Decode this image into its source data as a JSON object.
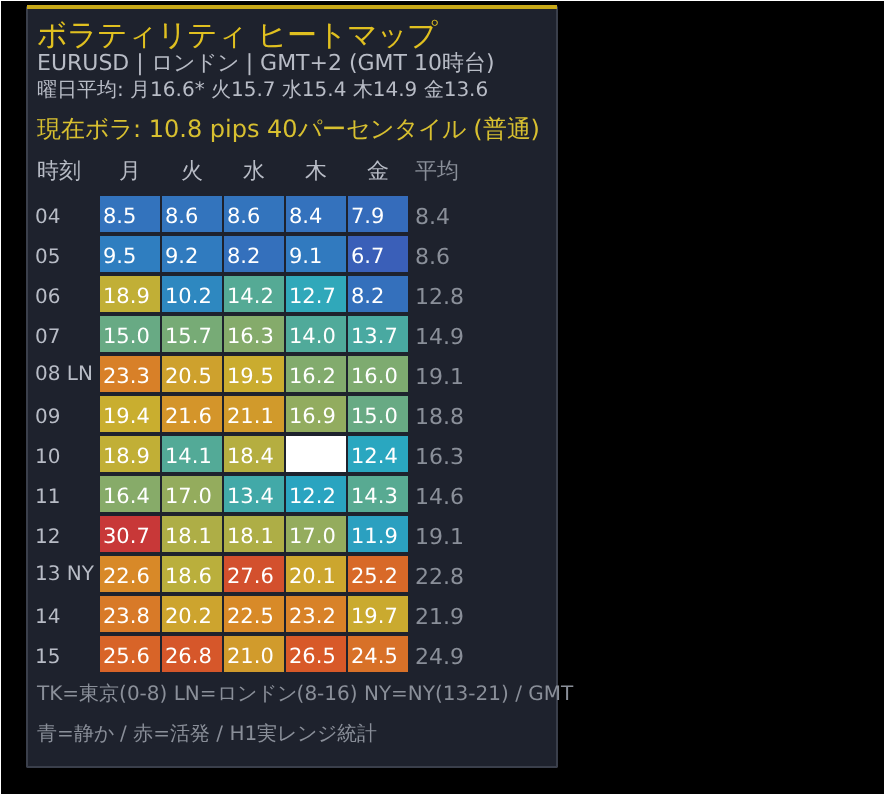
{
  "chart_data": {
    "type": "heatmap",
    "title": "ボラティリティ ヒートマップ",
    "subtitle": "EURUSD | ロンドン | GMT+2 (GMT 10時台)",
    "ylabel": "時刻",
    "y2label": "平均",
    "categories": [
      "月",
      "火",
      "水",
      "木",
      "金"
    ],
    "y_categories": [
      "04",
      "05",
      "06",
      "07",
      "08 LN",
      "09",
      "10",
      "11",
      "12",
      "13 NY",
      "14",
      "15"
    ],
    "y2_categories": [
      "8.4",
      "8.6",
      "12.8",
      "14.9",
      "19.1",
      "18.8",
      "16.3",
      "14.6",
      "19.1",
      "22.8",
      "21.9",
      "24.9"
    ],
    "cells": [
      [
        8.5,
        8.6,
        8.6,
        8.4,
        7.9
      ],
      [
        9.5,
        9.2,
        8.2,
        9.1,
        6.7
      ],
      [
        18.9,
        10.2,
        14.2,
        12.7,
        8.2
      ],
      [
        15.0,
        15.7,
        16.3,
        14.0,
        13.7
      ],
      [
        23.3,
        20.5,
        19.5,
        16.2,
        16.0
      ],
      [
        19.4,
        21.6,
        21.1,
        16.9,
        15.0
      ],
      [
        18.9,
        14.1,
        18.4,
        null,
        12.4
      ],
      [
        16.4,
        17.0,
        13.4,
        12.2,
        14.3
      ],
      [
        30.7,
        18.1,
        18.1,
        17.0,
        11.9
      ],
      [
        22.6,
        18.6,
        27.6,
        20.1,
        25.2
      ],
      [
        23.8,
        20.2,
        22.5,
        23.2,
        19.7
      ],
      [
        25.6,
        26.8,
        21.0,
        26.5,
        24.5
      ]
    ],
    "cell_labels": [
      [
        "8.5",
        "8.6",
        "8.6",
        "8.4",
        "7.9"
      ],
      [
        "9.5",
        "9.2",
        "8.2",
        "9.1",
        "6.7"
      ],
      [
        "18.9",
        "10.2",
        "14.2",
        "12.7",
        "8.2"
      ],
      [
        "15.0",
        "15.7",
        "16.3",
        "14.0",
        "13.7"
      ],
      [
        "23.3",
        "20.5",
        "19.5",
        "16.2",
        "16.0"
      ],
      [
        "19.4",
        "21.6",
        "21.1",
        "16.9",
        "15.0"
      ],
      [
        "18.9",
        "14.1",
        "18.4",
        null,
        "12.4"
      ],
      [
        "16.4",
        "17.0",
        "13.4",
        "12.2",
        "14.3"
      ],
      [
        "30.7",
        "18.1",
        "18.1",
        "17.0",
        "11.9"
      ],
      [
        "22.6",
        "18.6",
        "27.6",
        "20.1",
        "25.2"
      ],
      [
        "23.8",
        "20.2",
        "22.5",
        "23.2",
        "19.7"
      ],
      [
        "25.6",
        "26.8",
        "21.0",
        "26.5",
        "24.5"
      ]
    ],
    "annotations": [
      "曜日平均: 月16.6* 火15.7 水15.4 木14.9 金13.6",
      "現在ボラ: 10.8 pips  40パーセンタイル (普通)",
      "TK=東京(0-8) LN=ロンドン(8-16) NY=NY(13-21) / GMT",
      "青=静か / 赤=活発 / H1実レンジ統計"
    ]
  }
}
